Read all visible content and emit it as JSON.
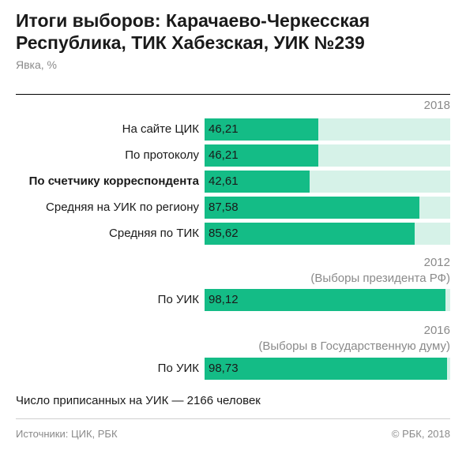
{
  "chart_data": {
    "type": "bar",
    "orientation": "horizontal",
    "title": "Итоги выборов: Карачаево-Черкесская Республика, ТИК Хабезская, УИК №239",
    "subtitle": "Явка, %",
    "xlim": [
      0,
      100
    ],
    "colors": {
      "bar": "#14bc86",
      "track": "#d6f2e8"
    },
    "sections": [
      {
        "label": "2018",
        "sublabel": "",
        "categories": [
          "На сайте ЦИК",
          "По протоколу",
          "По счетчику корреспондента",
          "Средняя на УИК по региону",
          "Средняя по ТИК"
        ],
        "values": [
          46.21,
          46.21,
          42.61,
          87.58,
          85.62
        ],
        "value_labels": [
          "46,21",
          "46,21",
          "42,61",
          "87,58",
          "85,62"
        ],
        "highlight": [
          false,
          false,
          true,
          false,
          false
        ]
      },
      {
        "label": "2012",
        "sublabel": "(Выборы президента РФ)",
        "categories": [
          "По УИК"
        ],
        "values": [
          98.12
        ],
        "value_labels": [
          "98,12"
        ],
        "highlight": [
          false
        ]
      },
      {
        "label": "2016",
        "sublabel": "(Выборы в Государственную думу)",
        "categories": [
          "По УИК"
        ],
        "values": [
          98.73
        ],
        "value_labels": [
          "98,73"
        ],
        "highlight": [
          false
        ]
      }
    ]
  },
  "note": "Число приписанных на УИК — 2166 человек",
  "footer": {
    "source": "Источники: ЦИК, РБК",
    "copyright": "© РБК, 2018"
  }
}
